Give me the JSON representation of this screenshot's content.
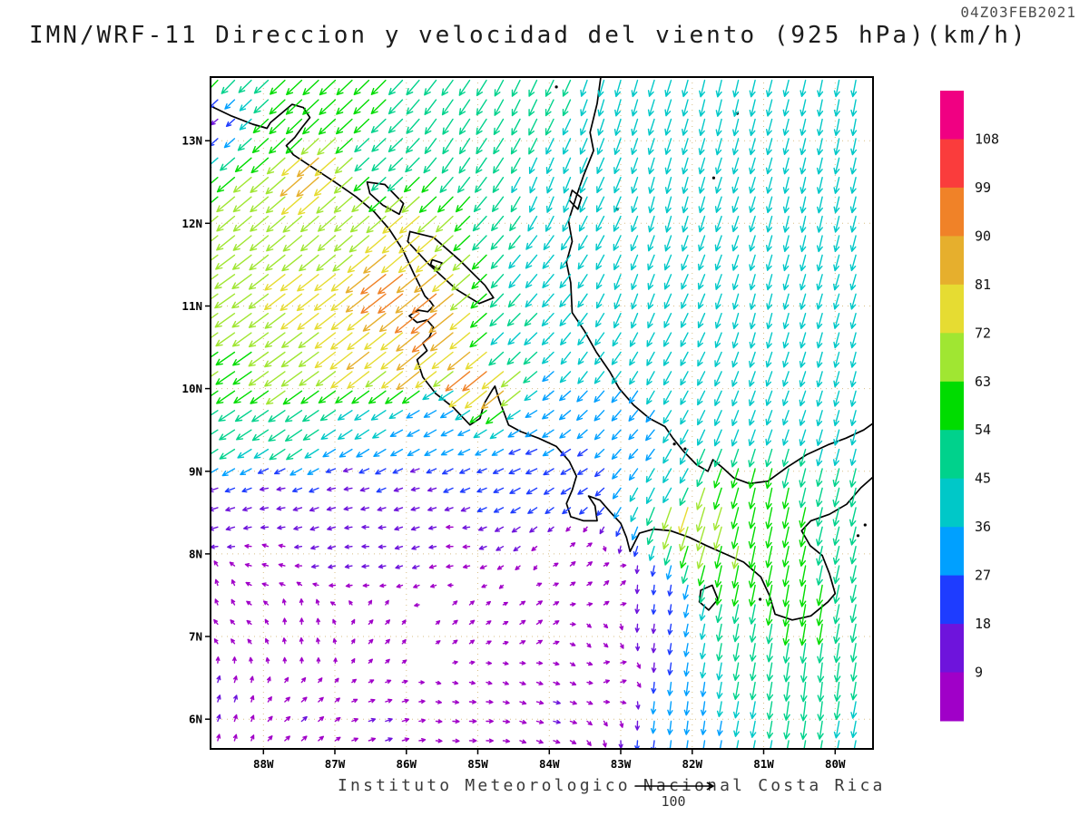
{
  "header": {
    "timestamp": "04Z03FEB2021",
    "title": "IMN/WRF-11 Direccion y velocidad del viento (925 hPa)(km/h)"
  },
  "footer": {
    "institution": "Instituto Meteorologico Nacional Costa Rica",
    "reference_label": "100"
  },
  "chart_data": {
    "type": "vector-field-map",
    "model": "IMN/WRF-11",
    "variable": "Direccion y velocidad del viento",
    "level": "925 hPa",
    "units": "km/h",
    "valid_time": "04Z03FEB2021",
    "lon_range": [
      -88.74,
      -79.47
    ],
    "lat_range": [
      5.64,
      13.77
    ],
    "x_ticks": [
      "88W",
      "87W",
      "86W",
      "85W",
      "84W",
      "83W",
      "82W",
      "81W",
      "80W"
    ],
    "x_tick_lons": [
      -88,
      -87,
      -86,
      -85,
      -84,
      -83,
      -82,
      -81,
      -80
    ],
    "y_ticks": [
      "6N",
      "7N",
      "8N",
      "9N",
      "10N",
      "11N",
      "12N",
      "13N"
    ],
    "y_tick_lats": [
      6,
      7,
      8,
      9,
      10,
      11,
      12,
      13
    ],
    "grid_on": true,
    "legend_position": "right",
    "reference_vector": 100,
    "grid_spacing_deg": 0.235,
    "colorbar": {
      "boundaries": [
        9,
        18,
        27,
        36,
        45,
        54,
        63,
        72,
        81,
        90,
        99,
        108
      ],
      "colors_low_to_high": [
        "#A000C8",
        "#6E14DC",
        "#1E3CFF",
        "#00A0FF",
        "#00C8C8",
        "#00D28C",
        "#00DC00",
        "#A0E632",
        "#E6DC32",
        "#E6AF2D",
        "#F08228",
        "#FA3C3C",
        "#F00082"
      ]
    },
    "wind_control_points": [
      [
        -88.7,
        13.7,
        -40,
        -42
      ],
      [
        -87.5,
        13.2,
        -42,
        -40
      ],
      [
        -86.3,
        12.8,
        -36,
        -34
      ],
      [
        -85.2,
        13.1,
        -26,
        -40
      ],
      [
        -88.65,
        13.35,
        -12,
        -10
      ],
      [
        -87.25,
        12.6,
        -64,
        -56
      ],
      [
        -88.2,
        12.3,
        -50,
        -42
      ],
      [
        -87.0,
        12.0,
        -48,
        -42
      ],
      [
        -86.0,
        11.8,
        -58,
        -50
      ],
      [
        -88.6,
        11.2,
        -56,
        -40
      ],
      [
        -87.3,
        11.2,
        -62,
        -48
      ],
      [
        -86.2,
        11.3,
        -74,
        -58
      ],
      [
        -85.6,
        10.9,
        -74,
        -60
      ],
      [
        -88.6,
        10.2,
        -52,
        -36
      ],
      [
        -87.6,
        10.3,
        -58,
        -42
      ],
      [
        -86.6,
        10.4,
        -64,
        -50
      ],
      [
        -85.8,
        10.3,
        -66,
        -53
      ],
      [
        -85.0,
        10.2,
        -72,
        -58
      ],
      [
        -84.6,
        10.05,
        -64,
        -52
      ],
      [
        -88.6,
        9.4,
        -40,
        -26
      ],
      [
        -87.6,
        9.5,
        -44,
        -30
      ],
      [
        -86.7,
        9.6,
        -36,
        -24
      ],
      [
        -85.9,
        9.5,
        -28,
        -15
      ],
      [
        -85.2,
        9.4,
        -26,
        -12
      ],
      [
        -85.5,
        9.8,
        -28,
        -16
      ],
      [
        -84.2,
        9.7,
        -26,
        -16
      ],
      [
        -83.9,
        10.0,
        -26,
        -22
      ],
      [
        -88.6,
        8.6,
        -16,
        -5
      ],
      [
        -87.8,
        8.7,
        -13,
        -2
      ],
      [
        -86.8,
        8.8,
        -13,
        -2
      ],
      [
        -85.8,
        8.8,
        -13,
        -3
      ],
      [
        -84.9,
        8.9,
        -18,
        -7
      ],
      [
        -84.3,
        9.2,
        -24,
        -10
      ],
      [
        -84.2,
        13.6,
        -20,
        -42
      ],
      [
        -83.0,
        13.6,
        -12,
        -42
      ],
      [
        -81.5,
        13.6,
        -10,
        -43
      ],
      [
        -79.8,
        13.5,
        -8,
        -42
      ],
      [
        -83.9,
        12.5,
        -16,
        -40
      ],
      [
        -82.3,
        12.4,
        -11,
        -41
      ],
      [
        -80.3,
        12.2,
        -9,
        -41
      ],
      [
        -84.3,
        11.4,
        -28,
        -34
      ],
      [
        -82.8,
        11.2,
        -14,
        -38
      ],
      [
        -81.0,
        11.0,
        -10,
        -39
      ],
      [
        -79.8,
        10.5,
        -10,
        -38
      ],
      [
        -84.5,
        10.6,
        -30,
        -30
      ],
      [
        -83.5,
        10.4,
        -22,
        -30
      ],
      [
        -82.3,
        10.2,
        -18,
        -33
      ],
      [
        -80.8,
        9.9,
        -13,
        -36
      ],
      [
        -79.7,
        9.6,
        -10,
        -38
      ],
      [
        -82.8,
        9.4,
        -20,
        -22
      ],
      [
        -83.6,
        9.0,
        -20,
        -12
      ],
      [
        -82.2,
        8.9,
        -20,
        -34
      ],
      [
        -82.05,
        8.55,
        -24,
        -74
      ],
      [
        -81.9,
        8.45,
        -20,
        -68
      ],
      [
        -81.3,
        8.0,
        -12,
        -62
      ],
      [
        -80.9,
        8.6,
        -12,
        -58
      ],
      [
        -80.5,
        7.4,
        -10,
        -60
      ],
      [
        -80.25,
        6.5,
        -6,
        -52
      ],
      [
        -79.6,
        8.8,
        -12,
        -50
      ],
      [
        -79.6,
        7.8,
        -10,
        -45
      ],
      [
        -79.6,
        6.0,
        -8,
        -42
      ],
      [
        -81.3,
        6.8,
        -8,
        -46
      ],
      [
        -82.2,
        6.2,
        -4,
        -32
      ],
      [
        -82.6,
        7.5,
        -2,
        -18
      ],
      [
        -83.1,
        6.5,
        5,
        2
      ],
      [
        -88.6,
        7.6,
        -2,
        6
      ],
      [
        -88.6,
        6.2,
        3,
        9
      ],
      [
        -87.5,
        6.0,
        7,
        6
      ],
      [
        -86.3,
        5.9,
        9,
        3
      ],
      [
        -85.0,
        5.9,
        9,
        0
      ],
      [
        -84.0,
        6.1,
        9,
        -2
      ],
      [
        -84.2,
        7.2,
        7,
        5
      ],
      [
        -85.2,
        7.2,
        5,
        4
      ],
      [
        -86.4,
        7.1,
        4,
        4
      ],
      [
        -87.5,
        7.2,
        0,
        6
      ],
      [
        -87.9,
        8.0,
        -6,
        2
      ],
      [
        -83.6,
        7.9,
        6,
        5
      ],
      [
        -83.1,
        7.6,
        6,
        6
      ],
      [
        -85.3,
        8.2,
        -8,
        0
      ],
      [
        -86.5,
        8.2,
        -9,
        0
      ]
    ],
    "coastlines": [
      [
        [
          -88.74,
          13.42
        ],
        [
          -88.45,
          13.3
        ],
        [
          -88.15,
          13.2
        ],
        [
          -87.95,
          13.15
        ],
        [
          -87.9,
          13.22
        ],
        [
          -87.75,
          13.33
        ],
        [
          -87.6,
          13.44
        ],
        [
          -87.44,
          13.4
        ],
        [
          -87.35,
          13.28
        ],
        [
          -87.46,
          13.16
        ],
        [
          -87.56,
          13.04
        ],
        [
          -87.68,
          12.94
        ],
        [
          -87.58,
          12.83
        ],
        [
          -87.32,
          12.68
        ],
        [
          -87.0,
          12.5
        ],
        [
          -86.7,
          12.32
        ],
        [
          -86.45,
          12.14
        ],
        [
          -86.24,
          11.93
        ],
        [
          -86.05,
          11.68
        ],
        [
          -85.9,
          11.4
        ],
        [
          -85.74,
          11.12
        ],
        [
          -85.66,
          11.05
        ],
        [
          -85.62,
          11.0
        ],
        [
          -85.7,
          10.93
        ],
        [
          -85.84,
          10.95
        ],
        [
          -85.96,
          10.88
        ],
        [
          -85.85,
          10.8
        ],
        [
          -85.71,
          10.83
        ],
        [
          -85.62,
          10.74
        ],
        [
          -85.68,
          10.62
        ],
        [
          -85.77,
          10.55
        ],
        [
          -85.71,
          10.46
        ],
        [
          -85.85,
          10.35
        ],
        [
          -85.77,
          10.14
        ],
        [
          -85.59,
          9.94
        ],
        [
          -85.34,
          9.77
        ],
        [
          -85.11,
          9.56
        ],
        [
          -84.97,
          9.64
        ],
        [
          -84.91,
          9.82
        ],
        [
          -84.8,
          9.98
        ],
        [
          -84.76,
          10.03
        ],
        [
          -84.7,
          9.86
        ],
        [
          -84.63,
          9.7
        ],
        [
          -84.57,
          9.56
        ],
        [
          -84.4,
          9.48
        ],
        [
          -84.15,
          9.4
        ],
        [
          -83.9,
          9.3
        ],
        [
          -83.72,
          9.12
        ],
        [
          -83.62,
          8.94
        ],
        [
          -83.68,
          8.77
        ],
        [
          -83.76,
          8.61
        ],
        [
          -83.7,
          8.45
        ],
        [
          -83.52,
          8.4
        ],
        [
          -83.33,
          8.4
        ],
        [
          -83.36,
          8.58
        ],
        [
          -83.45,
          8.7
        ],
        [
          -83.29,
          8.65
        ],
        [
          -83.14,
          8.5
        ],
        [
          -83.0,
          8.37
        ],
        [
          -82.92,
          8.2
        ],
        [
          -82.87,
          8.03
        ],
        [
          -82.74,
          8.25
        ],
        [
          -82.54,
          8.3
        ],
        [
          -82.3,
          8.28
        ],
        [
          -82.04,
          8.2
        ],
        [
          -81.8,
          8.1
        ],
        [
          -81.54,
          8.0
        ],
        [
          -81.28,
          7.9
        ],
        [
          -81.04,
          7.72
        ],
        [
          -80.92,
          7.5
        ],
        [
          -80.84,
          7.27
        ],
        [
          -80.6,
          7.2
        ],
        [
          -80.34,
          7.25
        ],
        [
          -80.1,
          7.42
        ],
        [
          -80.0,
          7.52
        ],
        [
          -80.08,
          7.76
        ],
        [
          -80.18,
          7.98
        ],
        [
          -80.35,
          8.1
        ],
        [
          -80.47,
          8.28
        ],
        [
          -80.34,
          8.4
        ],
        [
          -80.08,
          8.48
        ],
        [
          -79.84,
          8.6
        ],
        [
          -79.64,
          8.8
        ],
        [
          -79.47,
          8.93
        ]
      ],
      [
        [
          -83.28,
          13.77
        ],
        [
          -83.33,
          13.45
        ],
        [
          -83.43,
          13.1
        ],
        [
          -83.38,
          12.88
        ],
        [
          -83.52,
          12.58
        ],
        [
          -83.62,
          12.33
        ],
        [
          -83.73,
          12.03
        ],
        [
          -83.68,
          11.78
        ],
        [
          -83.76,
          11.53
        ],
        [
          -83.7,
          11.28
        ],
        [
          -83.68,
          10.92
        ],
        [
          -83.51,
          10.7
        ],
        [
          -83.34,
          10.44
        ],
        [
          -83.15,
          10.2
        ],
        [
          -83.02,
          10.0
        ],
        [
          -82.82,
          9.8
        ],
        [
          -82.6,
          9.64
        ],
        [
          -82.38,
          9.54
        ],
        [
          -82.27,
          9.4
        ],
        [
          -82.12,
          9.24
        ],
        [
          -81.94,
          9.08
        ],
        [
          -81.78,
          9.0
        ],
        [
          -81.71,
          9.14
        ],
        [
          -81.57,
          9.04
        ],
        [
          -81.42,
          8.92
        ],
        [
          -81.2,
          8.85
        ],
        [
          -80.94,
          8.88
        ],
        [
          -80.67,
          9.05
        ],
        [
          -80.4,
          9.2
        ],
        [
          -80.1,
          9.32
        ],
        [
          -79.85,
          9.4
        ],
        [
          -79.6,
          9.5
        ],
        [
          -79.47,
          9.58
        ]
      ],
      [
        [
          -85.95,
          11.9
        ],
        [
          -85.62,
          11.83
        ],
        [
          -85.25,
          11.55
        ],
        [
          -84.9,
          11.25
        ],
        [
          -84.78,
          11.1
        ],
        [
          -84.98,
          11.03
        ],
        [
          -85.3,
          11.2
        ],
        [
          -85.68,
          11.5
        ],
        [
          -85.98,
          11.78
        ],
        [
          -85.95,
          11.9
        ]
      ],
      [
        [
          -85.64,
          11.56
        ],
        [
          -85.5,
          11.52
        ],
        [
          -85.55,
          11.44
        ],
        [
          -85.66,
          11.5
        ],
        [
          -85.64,
          11.56
        ]
      ],
      [
        [
          -86.55,
          12.5
        ],
        [
          -86.3,
          12.47
        ],
        [
          -86.04,
          12.24
        ],
        [
          -86.1,
          12.11
        ],
        [
          -86.33,
          12.22
        ],
        [
          -86.51,
          12.36
        ],
        [
          -86.55,
          12.5
        ]
      ],
      [
        [
          -81.88,
          7.56
        ],
        [
          -81.72,
          7.62
        ],
        [
          -81.64,
          7.45
        ],
        [
          -81.77,
          7.32
        ],
        [
          -81.9,
          7.42
        ],
        [
          -81.88,
          7.56
        ]
      ],
      [
        [
          -83.68,
          12.4
        ],
        [
          -83.55,
          12.31
        ],
        [
          -83.6,
          12.17
        ],
        [
          -83.72,
          12.28
        ],
        [
          -83.68,
          12.4
        ]
      ]
    ],
    "island_dots": [
      [
        -81.7,
        12.55
      ],
      [
        -81.37,
        13.33
      ],
      [
        -83.05,
        12.17
      ],
      [
        -82.25,
        9.33
      ],
      [
        -82.1,
        9.27
      ],
      [
        -81.05,
        7.45
      ],
      [
        -79.58,
        8.35
      ],
      [
        -79.68,
        8.22
      ],
      [
        -83.9,
        13.65
      ]
    ]
  }
}
